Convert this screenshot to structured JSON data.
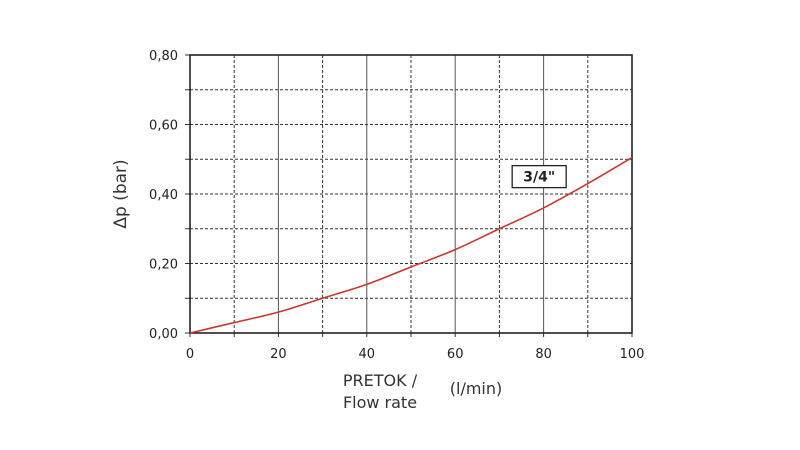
{
  "chart_data": {
    "type": "line",
    "xlabel_line1": "PRETOK /",
    "xlabel_line2": "Flow rate",
    "xlabel_unit": "(l/min)",
    "ylabel": "Δp  (bar)",
    "xlim": [
      0,
      100
    ],
    "ylim": [
      0,
      0.8
    ],
    "x_ticks": [
      "0",
      "20",
      "40",
      "60",
      "80",
      "100"
    ],
    "y_ticks": [
      "0,00",
      "0,20",
      "0,40",
      "0,60",
      "0,80"
    ],
    "grid": true,
    "series": [
      {
        "name": "3/4\"",
        "color": "#c8372d",
        "x": [
          0,
          10,
          20,
          30,
          40,
          50,
          60,
          70,
          80,
          90,
          100
        ],
        "y": [
          0,
          0.03,
          0.06,
          0.1,
          0.14,
          0.19,
          0.24,
          0.3,
          0.36,
          0.43,
          0.505
        ]
      }
    ],
    "annotations": [
      {
        "text": "3/4\"",
        "x": 79,
        "y": 0.45
      }
    ]
  }
}
